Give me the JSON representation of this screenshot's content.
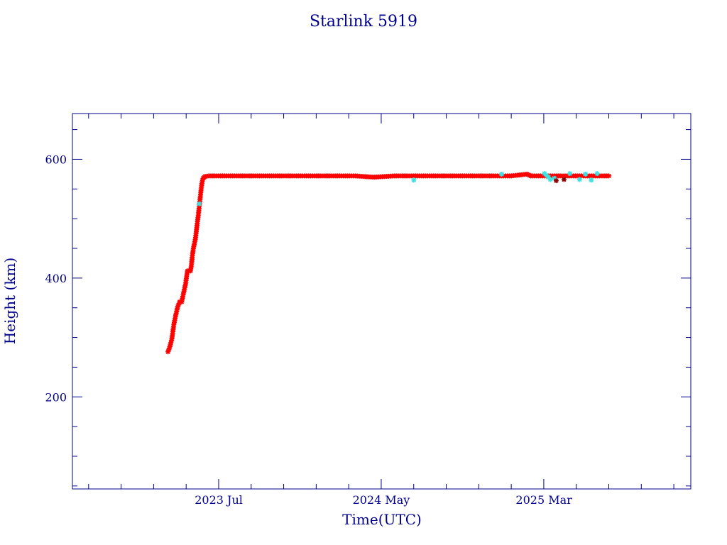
{
  "chart_data": {
    "type": "scatter",
    "title": "Starlink 5919",
    "xlabel": "Time(UTC)",
    "ylabel": "Height (km)",
    "x_ticks": [
      {
        "label": "2023 Jul",
        "value": 2023.5
      },
      {
        "label": "2024 May",
        "value": 2024.333
      },
      {
        "label": "2025 Mar",
        "value": 2025.167
      }
    ],
    "y_ticks": [
      200,
      400,
      600
    ],
    "xlim": [
      2022.75,
      2025.92
    ],
    "ylim": [
      45,
      677
    ],
    "grid": false,
    "colors": {
      "axes": "#00008b",
      "primary": "#ff0000",
      "secondary": "#40e0e0",
      "dark": "#8b0000"
    },
    "series": [
      {
        "marker": "asterisk",
        "color": "#ff0000",
        "points": [
          [
            2023.24,
            276
          ],
          [
            2023.25,
            285
          ],
          [
            2023.26,
            298
          ],
          [
            2023.265,
            310
          ],
          [
            2023.27,
            322
          ],
          [
            2023.28,
            338
          ],
          [
            2023.29,
            352
          ],
          [
            2023.3,
            360
          ],
          [
            2023.31,
            360
          ],
          [
            2023.32,
            375
          ],
          [
            2023.33,
            390
          ],
          [
            2023.335,
            402
          ],
          [
            2023.34,
            412
          ],
          [
            2023.355,
            412
          ],
          [
            2023.36,
            422
          ],
          [
            2023.365,
            438
          ],
          [
            2023.37,
            450
          ],
          [
            2023.38,
            465
          ],
          [
            2023.385,
            478
          ],
          [
            2023.39,
            492
          ],
          [
            2023.395,
            505
          ],
          [
            2023.4,
            520
          ],
          [
            2023.405,
            535
          ],
          [
            2023.41,
            550
          ],
          [
            2023.415,
            562
          ],
          [
            2023.42,
            568
          ],
          [
            2023.43,
            571
          ],
          [
            2023.45,
            572
          ],
          [
            2023.5,
            572
          ],
          [
            2023.6,
            572
          ],
          [
            2023.7,
            572
          ],
          [
            2023.8,
            572
          ],
          [
            2023.9,
            572
          ],
          [
            2024.0,
            572
          ],
          [
            2024.1,
            572
          ],
          [
            2024.2,
            572
          ],
          [
            2024.29,
            570
          ],
          [
            2024.3,
            570
          ],
          [
            2024.4,
            572
          ],
          [
            2024.5,
            572
          ],
          [
            2024.6,
            572
          ],
          [
            2024.7,
            572
          ],
          [
            2024.8,
            572
          ],
          [
            2024.9,
            572
          ],
          [
            2025.0,
            572
          ],
          [
            2025.08,
            575
          ],
          [
            2025.1,
            572
          ],
          [
            2025.2,
            572
          ],
          [
            2025.25,
            572
          ],
          [
            2025.3,
            572
          ],
          [
            2025.35,
            572
          ],
          [
            2025.4,
            572
          ],
          [
            2025.45,
            572
          ],
          [
            2025.5,
            572
          ]
        ]
      },
      {
        "marker": "asterisk",
        "color": "#40e0e0",
        "points": [
          [
            2023.4,
            525
          ],
          [
            2024.5,
            565
          ],
          [
            2024.95,
            575
          ],
          [
            2025.17,
            576
          ],
          [
            2025.18,
            573
          ],
          [
            2025.19,
            570
          ],
          [
            2025.2,
            566
          ],
          [
            2025.22,
            568
          ],
          [
            2025.3,
            576
          ],
          [
            2025.35,
            566
          ],
          [
            2025.38,
            575
          ],
          [
            2025.41,
            565
          ],
          [
            2025.44,
            576
          ]
        ]
      },
      {
        "marker": "asterisk",
        "color": "#8b0000",
        "points": [
          [
            2025.23,
            564
          ],
          [
            2025.27,
            566
          ]
        ]
      }
    ]
  }
}
